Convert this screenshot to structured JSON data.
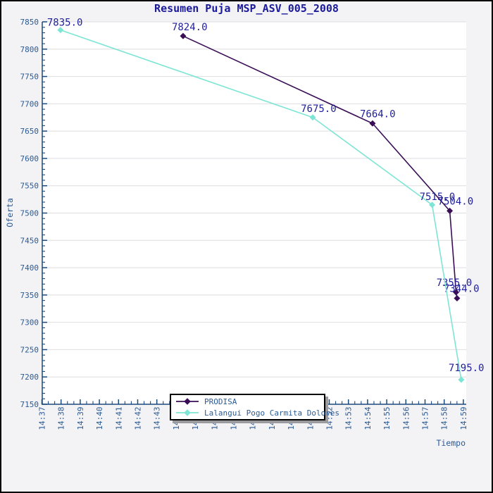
{
  "frame": {
    "background": "#f3f3f5",
    "border_color": "#000000"
  },
  "chart": {
    "title": "Resumen Puja MSP_ASV_005_2008"
  },
  "chart_data": {
    "type": "line",
    "title": "Resumen Puja MSP_ASV_005_2008",
    "xlabel": "Tiempo",
    "ylabel": "Oferta",
    "x_tick_labels": [
      "14:37",
      "14:38",
      "14:39",
      "14:40",
      "14:41",
      "14:42",
      "14:43",
      "14:44",
      "14:45",
      "14:46",
      "14:47",
      "14:48",
      "14:49",
      "14:50",
      "14:51",
      "14:52",
      "14:53",
      "14:54",
      "14:55",
      "14:56",
      "14:57",
      "14:58",
      "14:59"
    ],
    "x_minor_ticks_per_minute": 3,
    "t_unit": "minutes after 14:37",
    "ylim": [
      7150,
      7850
    ],
    "y_tick_step": 50,
    "y_minor_tick_step": 10,
    "grid": "horizontal",
    "legend_position": "bottom-center",
    "series": [
      {
        "name": "PRODISA",
        "color": "#3a0e56",
        "points": [
          {
            "t": 7.37,
            "v": 7824,
            "label": "7824.0",
            "dx": -16,
            "dy": -8
          },
          {
            "t": 17.26,
            "v": 7664,
            "label": "7664.0",
            "dx": -18,
            "dy": -9
          },
          {
            "t": 21.29,
            "v": 7504,
            "label": "7504.0",
            "dx": -17,
            "dy": -9
          },
          {
            "t": 21.62,
            "v": 7355,
            "label": "7355.0",
            "dx": -28,
            "dy": -9
          },
          {
            "t": 21.67,
            "v": 7344,
            "label": "7344.0",
            "dx": -19,
            "dy": -9
          }
        ]
      },
      {
        "name": "Lalangui Pogo Carmita Dolores",
        "color": "#7ee5d5",
        "points": [
          {
            "t": 0.97,
            "v": 7835,
            "label": "7835.0",
            "dx": -19,
            "dy": -6
          },
          {
            "t": 14.14,
            "v": 7675,
            "label": "7675.0",
            "dx": -17,
            "dy": -8
          },
          {
            "t": 20.37,
            "v": 7515,
            "label": "7515.0",
            "dx": -18,
            "dy": -7
          },
          {
            "t": 21.89,
            "v": 7195,
            "label": "7195.0",
            "dx": -18,
            "dy": -12
          }
        ]
      }
    ]
  },
  "colors": {
    "plot_bg": "#ffffff",
    "grid": "#dedee0",
    "axis": "#1b4a7c",
    "tick_text": "#2b5a94",
    "data_label": "#1f1f9a",
    "title": "#1a1a9a",
    "legend_text": "#2b5a94",
    "legend_shadow": "#9b9b9e"
  }
}
